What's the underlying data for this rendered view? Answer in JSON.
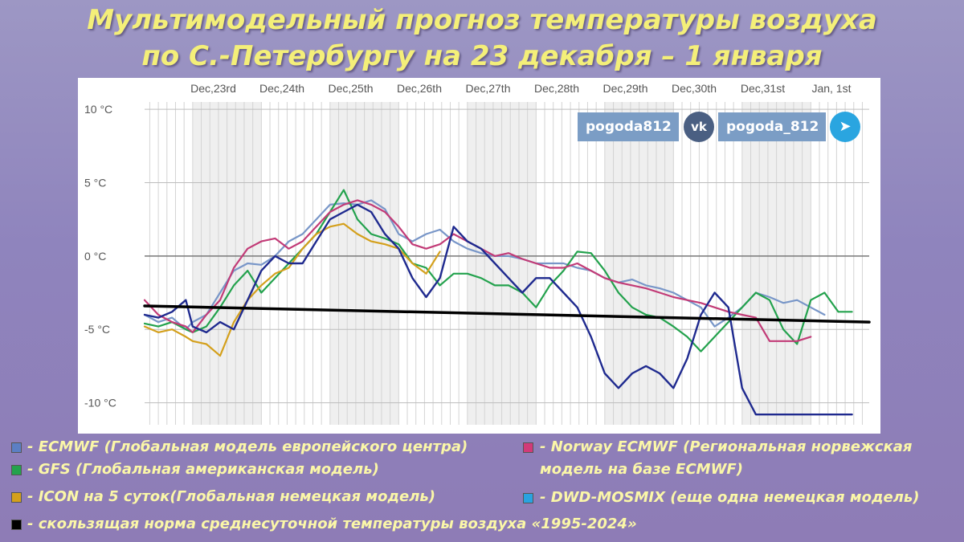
{
  "title_line1": "Мультимодельный прогноз температуры воздуха",
  "title_line2": "по С.-Петербургу на 23 декабря – 1 января",
  "social": {
    "vk_handle": "pogoda812",
    "vk_icon_text": "vk",
    "tg_handle": "pogoda_812",
    "tg_icon_text": "➤"
  },
  "legend": [
    {
      "color": "#5b7fc4",
      "text": "- ECMWF (Глобальная модель европейского центра)"
    },
    {
      "color": "#23a24d",
      "text": "- GFS (Глобальная американская модель)"
    },
    {
      "color": "#d4a01c",
      "text": "- ICON на 5 суток(Глобальная немецкая модель)"
    },
    {
      "color": "#000000",
      "text": "- скользящая норма среднесуточной температуры воздуха «1995-2024»"
    },
    {
      "color": "#d23a78",
      "text": "- Norway ECMWF (Региональная норвежская"
    },
    {
      "color": "",
      "text": "модель на базе ECMWF)"
    },
    {
      "color": "#29a3e0",
      "text": "- DWD-MOSMIX (еще одна немецкая модель)"
    }
  ],
  "chart_data": {
    "type": "line",
    "x_unit": "day index from Dec 22 00:00",
    "date_labels": [
      "Dec,23rd",
      "Dec,24th",
      "Dec,25th",
      "Dec,26th",
      "Dec,27th",
      "Dec,28th",
      "Dec,29th",
      "Dec,30th",
      "Dec,31st",
      "Jan, 1st"
    ],
    "y_ticks": [
      10,
      5,
      0,
      -5,
      -10
    ],
    "y_tick_labels": [
      "10 °C",
      "5 °C",
      "0 °C",
      "-5 °C",
      "-10 °C"
    ],
    "ylim": [
      -11.5,
      10.5
    ],
    "xlim": [
      0.3,
      10.85
    ],
    "grid": true,
    "series": [
      {
        "name": "ECMWF",
        "color": "#7896c8",
        "width": 2.2,
        "x": [
          0.3,
          0.5,
          0.7,
          0.9,
          1.0,
          1.2,
          1.4,
          1.6,
          1.8,
          2.0,
          2.2,
          2.4,
          2.6,
          2.8,
          3.0,
          3.2,
          3.4,
          3.6,
          3.8,
          4.0,
          4.2,
          4.4,
          4.6,
          4.8,
          5.0,
          5.2,
          5.4,
          5.6,
          5.8,
          6.0,
          6.2,
          6.4,
          6.6,
          6.8,
          7.0,
          7.2,
          7.4,
          7.6,
          7.8,
          8.0,
          8.2,
          8.4,
          8.6,
          8.8,
          9.0,
          9.2,
          9.4,
          9.6,
          9.8,
          10.0,
          10.2
        ],
        "y": [
          -4.0,
          -4.5,
          -4.2,
          -5.0,
          -4.5,
          -4.0,
          -2.5,
          -1.0,
          -0.5,
          -0.6,
          0.0,
          1.0,
          1.5,
          2.5,
          3.5,
          3.6,
          3.5,
          3.8,
          3.2,
          1.5,
          1.0,
          1.5,
          1.8,
          1.0,
          0.5,
          0.2,
          0.0,
          0.0,
          -0.2,
          -0.5,
          -0.5,
          -0.5,
          -0.8,
          -1.0,
          -1.5,
          -1.8,
          -1.6,
          -2.0,
          -2.2,
          -2.5,
          -3.0,
          -3.5,
          -4.8,
          -4.2,
          -3.5,
          -2.5,
          -2.8,
          -3.2,
          -3.0,
          -3.5,
          -4.0
        ]
      },
      {
        "name": "GFS",
        "color": "#23a24d",
        "width": 2.2,
        "x": [
          0.3,
          0.5,
          0.7,
          0.9,
          1.0,
          1.2,
          1.4,
          1.6,
          1.8,
          2.0,
          2.2,
          2.4,
          2.6,
          2.8,
          3.0,
          3.2,
          3.4,
          3.6,
          3.8,
          4.0,
          4.2,
          4.4,
          4.6,
          4.8,
          5.0,
          5.2,
          5.4,
          5.6,
          5.8,
          6.0,
          6.2,
          6.4,
          6.6,
          6.8,
          7.0,
          7.2,
          7.4,
          7.6,
          7.8,
          8.0,
          8.2,
          8.4,
          8.6,
          8.8,
          9.0,
          9.2,
          9.4,
          9.6,
          9.8,
          10.0,
          10.2,
          10.4,
          10.6
        ],
        "y": [
          -4.6,
          -4.8,
          -4.5,
          -5.0,
          -5.2,
          -4.8,
          -3.5,
          -2.0,
          -1.0,
          -2.5,
          -1.5,
          -0.5,
          0.5,
          1.5,
          3.0,
          4.5,
          2.5,
          1.5,
          1.2,
          0.8,
          -0.5,
          -0.8,
          -2.0,
          -1.2,
          -1.2,
          -1.5,
          -2.0,
          -2.0,
          -2.5,
          -3.5,
          -2.0,
          -1.0,
          0.3,
          0.2,
          -1.0,
          -2.5,
          -3.5,
          -4.0,
          -4.2,
          -4.8,
          -5.5,
          -6.5,
          -5.5,
          -4.5,
          -3.5,
          -2.5,
          -3.0,
          -5.0,
          -6.0,
          -3.0,
          -2.5,
          -3.8,
          -3.8
        ]
      },
      {
        "name": "ICON",
        "color": "#d4a01c",
        "width": 2.2,
        "x": [
          0.3,
          0.5,
          0.7,
          0.9,
          1.0,
          1.2,
          1.4,
          1.6,
          1.8,
          2.0,
          2.2,
          2.4,
          2.6,
          2.8,
          3.0,
          3.2,
          3.4,
          3.6,
          3.8,
          4.0,
          4.2,
          4.4,
          4.6
        ],
        "y": [
          -4.8,
          -5.2,
          -5.0,
          -5.5,
          -5.8,
          -6.0,
          -6.8,
          -4.5,
          -3.0,
          -2.0,
          -1.2,
          -0.8,
          0.5,
          1.5,
          2.0,
          2.2,
          1.5,
          1.0,
          0.8,
          0.5,
          -0.5,
          -1.2,
          0.3
        ]
      },
      {
        "name": "Norway ECMWF",
        "color": "#c23b77",
        "width": 2.2,
        "x": [
          0.3,
          0.5,
          0.7,
          0.9,
          1.0,
          1.2,
          1.4,
          1.6,
          1.8,
          2.0,
          2.2,
          2.4,
          2.6,
          2.8,
          3.0,
          3.2,
          3.4,
          3.6,
          3.8,
          4.0,
          4.2,
          4.4,
          4.6,
          4.8,
          5.0,
          5.2,
          5.4,
          5.6,
          5.8,
          6.0,
          6.2,
          6.4,
          6.6,
          6.8,
          7.0,
          7.2,
          7.4,
          7.6,
          7.8,
          8.0,
          8.2,
          8.4,
          8.6,
          8.8,
          9.0,
          9.2,
          9.4,
          9.6,
          9.8,
          10.0
        ],
        "y": [
          -3.0,
          -4.0,
          -4.5,
          -4.8,
          -5.2,
          -4.0,
          -3.0,
          -0.8,
          0.5,
          1.0,
          1.2,
          0.5,
          1.0,
          2.0,
          3.0,
          3.5,
          3.8,
          3.5,
          3.0,
          2.0,
          0.8,
          0.5,
          0.8,
          1.5,
          1.0,
          0.5,
          0.0,
          0.2,
          -0.2,
          -0.5,
          -0.8,
          -0.8,
          -0.5,
          -1.0,
          -1.5,
          -1.8,
          -2.0,
          -2.2,
          -2.5,
          -2.8,
          -3.0,
          -3.2,
          -3.5,
          -3.8,
          -4.0,
          -4.2,
          -5.8,
          -5.8,
          -5.8,
          -5.5
        ]
      },
      {
        "name": "DWD-MOSMIX",
        "color": "#1f2a8f",
        "width": 2.4,
        "x": [
          0.3,
          0.5,
          0.7,
          0.9,
          1.0,
          1.2,
          1.4,
          1.6,
          1.8,
          2.0,
          2.2,
          2.4,
          2.6,
          2.8,
          3.0,
          3.2,
          3.4,
          3.6,
          3.8,
          4.0,
          4.2,
          4.4,
          4.6,
          4.8,
          5.0,
          5.2,
          5.4,
          5.6,
          5.8,
          6.0,
          6.2,
          6.4,
          6.6,
          6.8,
          7.0,
          7.2,
          7.4,
          7.6,
          7.8,
          8.0,
          8.2,
          8.4,
          8.6,
          8.8,
          9.0,
          9.2,
          9.4,
          9.6,
          9.8,
          10.0,
          10.2,
          10.4,
          10.6
        ],
        "y": [
          -4.0,
          -4.2,
          -3.8,
          -3.0,
          -4.8,
          -5.2,
          -4.5,
          -5.0,
          -3.0,
          -1.0,
          0.0,
          -0.5,
          -0.5,
          1.0,
          2.5,
          3.0,
          3.5,
          3.0,
          1.5,
          0.5,
          -1.5,
          -2.8,
          -1.5,
          2.0,
          1.0,
          0.5,
          -0.5,
          -1.5,
          -2.5,
          -1.5,
          -1.5,
          -2.5,
          -3.5,
          -5.5,
          -8.0,
          -9.0,
          -8.0,
          -7.5,
          -8.0,
          -9.0,
          -7.0,
          -4.0,
          -2.5,
          -3.5,
          -9.0,
          -10.8,
          -10.8,
          -10.8,
          -10.8,
          -10.8,
          -10.8,
          -10.8,
          -10.8
        ]
      },
      {
        "name": "Norm 1995-2024",
        "color": "#000000",
        "width": 3.5,
        "x": [
          0.3,
          10.85
        ],
        "y": [
          -3.4,
          -4.5
        ]
      }
    ]
  }
}
